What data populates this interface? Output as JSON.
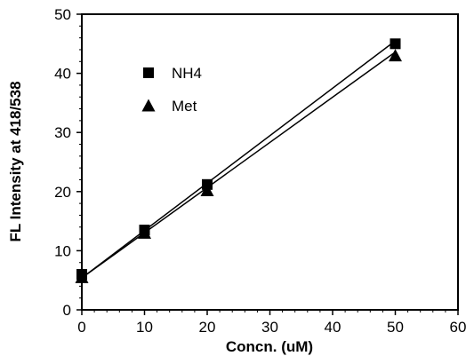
{
  "chart_data": {
    "type": "scatter",
    "title": "",
    "xlabel": "Concn. (uM)",
    "ylabel": "FL Intensity at 418/538",
    "xlim": [
      0,
      60
    ],
    "ylim": [
      0,
      50
    ],
    "xticks": [
      "0",
      "10",
      "20",
      "30",
      "40",
      "50",
      "60"
    ],
    "yticks": [
      "0",
      "10",
      "20",
      "30",
      "40",
      "50"
    ],
    "grid": false,
    "legend_position": "top-left",
    "series": [
      {
        "name": "NH4",
        "marker": "square",
        "color": "#000000",
        "x": [
          0,
          10,
          20,
          50
        ],
        "y": [
          6.0,
          13.5,
          21.2,
          45.0
        ],
        "fit": [
          [
            0,
            5.4
          ],
          [
            50,
            45.5
          ]
        ]
      },
      {
        "name": "Met",
        "marker": "triangle",
        "color": "#000000",
        "x": [
          0,
          10,
          20,
          50
        ],
        "y": [
          5.5,
          13.0,
          20.2,
          43.0
        ],
        "fit": [
          [
            0,
            5.4
          ],
          [
            50,
            43.6
          ]
        ]
      }
    ]
  }
}
